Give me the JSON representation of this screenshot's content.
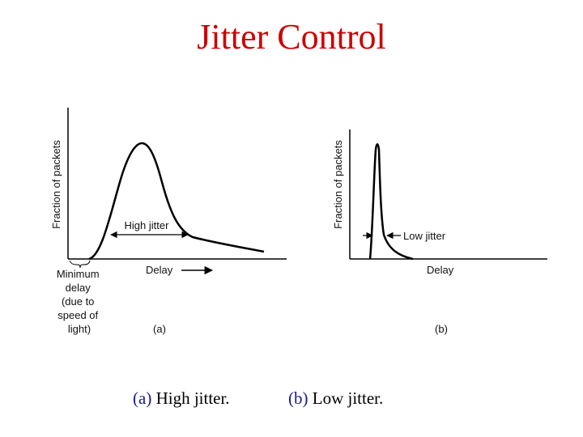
{
  "slide": {
    "title": "Jitter Control",
    "title_color": "#cc0000",
    "caption_tag_color": "#1a1a8c"
  },
  "panel_a": {
    "y_axis_label": "Fraction of packets",
    "x_axis_label": "Delay",
    "range_label": "High jitter",
    "min_delay_label": [
      "Minimum",
      "delay",
      "(due to",
      "speed of",
      "light)"
    ],
    "panel_tag": "(a)"
  },
  "panel_b": {
    "y_axis_label": "Fraction of packets",
    "x_axis_label": "Delay",
    "range_label": "Low jitter",
    "panel_tag": "(b)"
  },
  "captions": [
    {
      "tag": "(a)",
      "text": " High jitter."
    },
    {
      "tag": "(b)",
      "text": " Low jitter."
    }
  ]
}
